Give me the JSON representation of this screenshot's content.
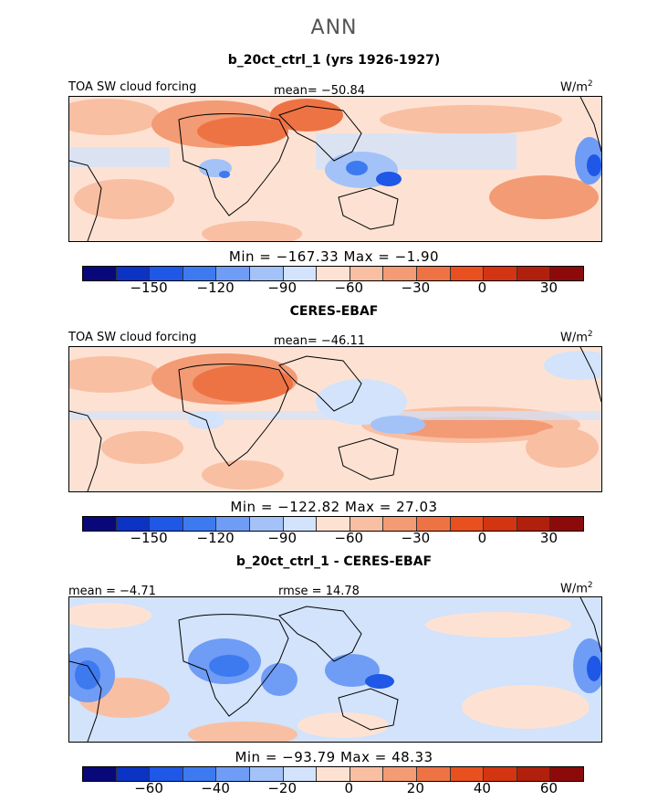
{
  "main_title": "ANN",
  "colors": [
    "#08087a",
    "#0b33c4",
    "#1f57e6",
    "#3d7af0",
    "#6f9cf5",
    "#a3c2f8",
    "#d2e3fb",
    "#fde2d3",
    "#f9bfa3",
    "#f39b75",
    "#ee7344",
    "#e8501f",
    "#d33512",
    "#b0200c",
    "#8c0a0a"
  ],
  "panels": [
    {
      "title": "b_20ct_ctrl_1 (yrs 1926-1927)",
      "left_label": "TOA SW cloud forcing",
      "center_label": "mean= −50.84",
      "units_base": "W/m",
      "units_sup": "2",
      "min_label": "Min",
      "min_value": "−167.33",
      "max_label": "Max",
      "max_value": "−1.90",
      "ticks": [
        "−150",
        "−120",
        "−90",
        "−60",
        "−30",
        "0",
        "30"
      ]
    },
    {
      "title": "CERES-EBAF",
      "left_label": "TOA SW cloud forcing",
      "center_label": "mean= −46.11",
      "units_base": "W/m",
      "units_sup": "2",
      "min_label": "Min",
      "min_value": "−122.82",
      "max_label": "Max",
      "max_value": "27.03",
      "ticks": [
        "−150",
        "−120",
        "−90",
        "−60",
        "−30",
        "0",
        "30"
      ]
    },
    {
      "title": "b_20ct_ctrl_1 - CERES-EBAF",
      "left_label": "mean = −4.71",
      "center_label": "rmse = 14.78",
      "units_base": "W/m",
      "units_sup": "2",
      "min_label": "Min",
      "min_value": "−93.79",
      "max_label": "Max",
      "max_value": "48.33",
      "ticks": [
        "−60",
        "−40",
        "−20",
        "0",
        "20",
        "40",
        "60"
      ]
    }
  ],
  "chart_data": [
    {
      "type": "heatmap",
      "title": "b_20ct_ctrl_1 (yrs 1926-1927)",
      "variable": "TOA SW cloud forcing",
      "units": "W/m2",
      "mean": -50.84,
      "min": -167.33,
      "max": -1.9,
      "colorbar_levels": [
        -170,
        -160,
        -150,
        -140,
        -130,
        -120,
        -110,
        -100,
        -90,
        -80,
        -70,
        -60,
        -50,
        -40,
        -30,
        -20,
        -10,
        0,
        10,
        20,
        30,
        40
      ],
      "colorbar_tick_labels": [
        -150,
        -120,
        -90,
        -60,
        -30,
        0,
        30
      ]
    },
    {
      "type": "heatmap",
      "title": "CERES-EBAF",
      "variable": "TOA SW cloud forcing",
      "units": "W/m2",
      "mean": -46.11,
      "min": -122.82,
      "max": 27.03,
      "colorbar_tick_labels": [
        -150,
        -120,
        -90,
        -60,
        -30,
        0,
        30
      ]
    },
    {
      "type": "heatmap",
      "title": "b_20ct_ctrl_1 - CERES-EBAF",
      "units": "W/m2",
      "mean": -4.71,
      "rmse": 14.78,
      "min": -93.79,
      "max": 48.33,
      "colorbar_tick_labels": [
        -60,
        -40,
        -20,
        0,
        20,
        40,
        60
      ]
    }
  ]
}
